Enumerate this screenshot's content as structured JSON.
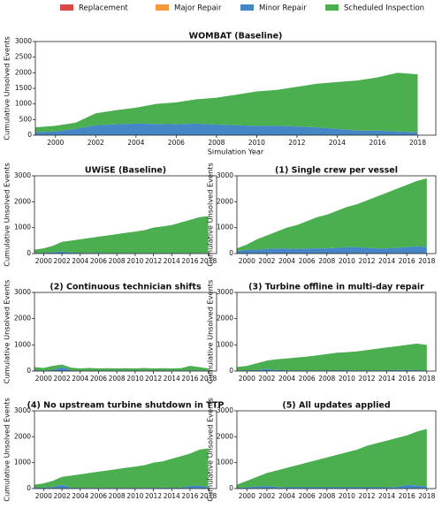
{
  "chart_data": [
    {
      "type": "stacked_area",
      "title": "WOMBAT (Baseline)",
      "xlabel": "Simulation Year",
      "ylabel": "Cumulative Unsolved Events",
      "x": [
        1999,
        2000,
        2001,
        2002,
        2003,
        2004,
        2005,
        2006,
        2007,
        2008,
        2009,
        2010,
        2011,
        2012,
        2013,
        2014,
        2015,
        2016,
        2017,
        2018
      ],
      "xlim": [
        1999,
        2018.9
      ],
      "xticks": [
        2000,
        2002,
        2004,
        2006,
        2008,
        2010,
        2012,
        2014,
        2016,
        2018
      ],
      "ylim": [
        0,
        3000
      ],
      "yticks": [
        0,
        500,
        1000,
        1500,
        2000,
        2500,
        3000
      ],
      "legend": "top",
      "series": [
        {
          "name": "Replacement",
          "color": "#d94747",
          "values": [
            0,
            0,
            0,
            0,
            0,
            0,
            0,
            0,
            0,
            0,
            0,
            0,
            0,
            0,
            0,
            0,
            0,
            0,
            0,
            0
          ]
        },
        {
          "name": "Major Repair",
          "color": "#f59a3a",
          "values": [
            0,
            0,
            0,
            0,
            0,
            0,
            0,
            0,
            0,
            0,
            0,
            0,
            0,
            0,
            0,
            0,
            0,
            0,
            0,
            0
          ]
        },
        {
          "name": "Minor Repair",
          "color": "#4587c6",
          "values": [
            100,
            120,
            200,
            320,
            350,
            370,
            360,
            350,
            370,
            340,
            320,
            300,
            300,
            280,
            250,
            200,
            150,
            150,
            120,
            100
          ]
        },
        {
          "name": "Scheduled Inspection",
          "color": "#4caf4f",
          "values": [
            150,
            180,
            200,
            380,
            450,
            510,
            640,
            700,
            780,
            860,
            980,
            1100,
            1150,
            1270,
            1400,
            1500,
            1600,
            1700,
            1880,
            1850
          ]
        }
      ]
    },
    {
      "type": "stacked_area",
      "title": "UWiSE (Baseline)",
      "ylabel": "Cumulative Unsolved Events",
      "x": [
        1999,
        2000,
        2001,
        2002,
        2003,
        2004,
        2005,
        2006,
        2007,
        2008,
        2009,
        2010,
        2011,
        2012,
        2013,
        2014,
        2015,
        2016,
        2017,
        2018
      ],
      "xlim": [
        1999,
        2018.9
      ],
      "xticks": [
        2000,
        2002,
        2004,
        2006,
        2008,
        2010,
        2012,
        2014,
        2016,
        2018
      ],
      "ylim": [
        0,
        3000
      ],
      "yticks": [
        0,
        1000,
        2000,
        3000
      ],
      "series": [
        {
          "name": "Replacement",
          "color": "#d94747",
          "values": [
            0,
            0,
            0,
            0,
            0,
            0,
            0,
            0,
            0,
            0,
            0,
            0,
            0,
            0,
            0,
            0,
            0,
            0,
            0,
            0
          ]
        },
        {
          "name": "Major Repair",
          "color": "#f59a3a",
          "values": [
            0,
            0,
            0,
            0,
            0,
            0,
            0,
            0,
            0,
            0,
            0,
            0,
            0,
            0,
            0,
            0,
            0,
            0,
            0,
            0
          ]
        },
        {
          "name": "Minor Repair",
          "color": "#4587c6",
          "values": [
            20,
            30,
            50,
            80,
            40,
            30,
            30,
            30,
            20,
            20,
            20,
            20,
            20,
            20,
            20,
            20,
            20,
            20,
            20,
            20
          ]
        },
        {
          "name": "Scheduled Inspection",
          "color": "#4caf4f",
          "values": [
            130,
            170,
            250,
            370,
            460,
            520,
            570,
            620,
            680,
            730,
            780,
            830,
            880,
            980,
            1030,
            1080,
            1180,
            1280,
            1380,
            1430
          ]
        }
      ]
    },
    {
      "type": "stacked_area",
      "title": "(1) Single crew per vessel",
      "ylabel": "Cumulative Unsolved Events",
      "x": [
        1999,
        2000,
        2001,
        2002,
        2003,
        2004,
        2005,
        2006,
        2007,
        2008,
        2009,
        2010,
        2011,
        2012,
        2013,
        2014,
        2015,
        2016,
        2017,
        2018
      ],
      "xlim": [
        1999,
        2018.9
      ],
      "xticks": [
        2000,
        2002,
        2004,
        2006,
        2008,
        2010,
        2012,
        2014,
        2016,
        2018
      ],
      "ylim": [
        0,
        3000
      ],
      "yticks": [
        0,
        1000,
        2000,
        3000
      ],
      "series": [
        {
          "name": "Replacement",
          "color": "#d94747",
          "values": [
            0,
            0,
            0,
            0,
            0,
            0,
            0,
            0,
            0,
            0,
            0,
            0,
            0,
            0,
            0,
            0,
            0,
            0,
            0,
            0
          ]
        },
        {
          "name": "Major Repair",
          "color": "#f59a3a",
          "values": [
            0,
            0,
            0,
            0,
            0,
            0,
            0,
            0,
            0,
            0,
            0,
            0,
            0,
            0,
            0,
            0,
            0,
            0,
            0,
            0
          ]
        },
        {
          "name": "Minor Repair",
          "color": "#4587c6",
          "values": [
            100,
            150,
            150,
            180,
            200,
            200,
            180,
            200,
            200,
            200,
            220,
            250,
            250,
            220,
            200,
            200,
            220,
            250,
            280,
            260
          ]
        },
        {
          "name": "Scheduled Inspection",
          "color": "#4caf4f",
          "values": [
            100,
            200,
            400,
            520,
            650,
            800,
            920,
            1050,
            1200,
            1300,
            1430,
            1550,
            1650,
            1830,
            2000,
            2150,
            2280,
            2400,
            2520,
            2640
          ]
        }
      ]
    },
    {
      "type": "stacked_area",
      "title": "(2) Continuous technician shifts",
      "ylabel": "Cumulative Unsolved Events",
      "x": [
        1999,
        2000,
        2001,
        2002,
        2003,
        2004,
        2005,
        2006,
        2007,
        2008,
        2009,
        2010,
        2011,
        2012,
        2013,
        2014,
        2015,
        2016,
        2017,
        2018
      ],
      "xlim": [
        1999,
        2018.9
      ],
      "xticks": [
        2000,
        2002,
        2004,
        2006,
        2008,
        2010,
        2012,
        2014,
        2016,
        2018
      ],
      "ylim": [
        0,
        3000
      ],
      "yticks": [
        0,
        1000,
        2000,
        3000
      ],
      "series": [
        {
          "name": "Replacement",
          "color": "#d94747",
          "values": [
            0,
            0,
            0,
            0,
            0,
            0,
            0,
            0,
            0,
            0,
            0,
            0,
            0,
            0,
            0,
            0,
            0,
            0,
            0,
            0
          ]
        },
        {
          "name": "Major Repair",
          "color": "#f59a3a",
          "values": [
            0,
            0,
            0,
            0,
            0,
            0,
            0,
            0,
            0,
            0,
            0,
            0,
            0,
            0,
            0,
            0,
            0,
            0,
            0,
            0
          ]
        },
        {
          "name": "Minor Repair",
          "color": "#4587c6",
          "values": [
            30,
            20,
            40,
            150,
            30,
            20,
            20,
            20,
            20,
            20,
            20,
            20,
            20,
            20,
            20,
            20,
            20,
            30,
            20,
            20
          ]
        },
        {
          "name": "Scheduled Inspection",
          "color": "#4caf4f",
          "values": [
            120,
            100,
            160,
            100,
            100,
            80,
            100,
            80,
            90,
            80,
            90,
            80,
            100,
            80,
            90,
            80,
            90,
            170,
            130,
            80
          ]
        }
      ]
    },
    {
      "type": "stacked_area",
      "title": "(3) Turbine offline in multi-day repair",
      "ylabel": "Cumulative Unsolved Events",
      "x": [
        1999,
        2000,
        2001,
        2002,
        2003,
        2004,
        2005,
        2006,
        2007,
        2008,
        2009,
        2010,
        2011,
        2012,
        2013,
        2014,
        2015,
        2016,
        2017,
        2018
      ],
      "xlim": [
        1999,
        2018.9
      ],
      "xticks": [
        2000,
        2002,
        2004,
        2006,
        2008,
        2010,
        2012,
        2014,
        2016,
        2018
      ],
      "ylim": [
        0,
        3000
      ],
      "yticks": [
        0,
        1000,
        2000,
        3000
      ],
      "series": [
        {
          "name": "Replacement",
          "color": "#d94747",
          "values": [
            0,
            0,
            0,
            0,
            0,
            0,
            0,
            0,
            0,
            0,
            0,
            0,
            0,
            0,
            0,
            0,
            0,
            0,
            0,
            0
          ]
        },
        {
          "name": "Major Repair",
          "color": "#f59a3a",
          "values": [
            0,
            0,
            0,
            0,
            0,
            0,
            0,
            0,
            0,
            0,
            0,
            0,
            0,
            0,
            0,
            0,
            0,
            0,
            0,
            0
          ]
        },
        {
          "name": "Minor Repair",
          "color": "#4587c6",
          "values": [
            20,
            30,
            40,
            80,
            40,
            30,
            30,
            30,
            30,
            30,
            40,
            30,
            30,
            30,
            30,
            30,
            40,
            50,
            30,
            30
          ]
        },
        {
          "name": "Scheduled Inspection",
          "color": "#4caf4f",
          "values": [
            130,
            170,
            260,
            320,
            410,
            450,
            490,
            520,
            570,
            620,
            660,
            690,
            720,
            770,
            820,
            870,
            910,
            950,
            1020,
            970
          ]
        }
      ]
    },
    {
      "type": "stacked_area",
      "title": "(4) No upstream turbine shutdown in TTP",
      "ylabel": "Cumulative Unsolved Events",
      "x": [
        1999,
        2000,
        2001,
        2002,
        2003,
        2004,
        2005,
        2006,
        2007,
        2008,
        2009,
        2010,
        2011,
        2012,
        2013,
        2014,
        2015,
        2016,
        2017,
        2018
      ],
      "xlim": [
        1999,
        2018.9
      ],
      "xticks": [
        2000,
        2002,
        2004,
        2006,
        2008,
        2010,
        2012,
        2014,
        2016,
        2018
      ],
      "ylim": [
        0,
        3000
      ],
      "yticks": [
        0,
        1000,
        2000,
        3000
      ],
      "series": [
        {
          "name": "Replacement",
          "color": "#d94747",
          "values": [
            0,
            0,
            0,
            0,
            0,
            0,
            0,
            0,
            0,
            0,
            0,
            0,
            0,
            0,
            0,
            0,
            0,
            0,
            0,
            0
          ]
        },
        {
          "name": "Major Repair",
          "color": "#f59a3a",
          "values": [
            0,
            0,
            0,
            0,
            0,
            0,
            0,
            0,
            0,
            0,
            0,
            0,
            0,
            0,
            0,
            0,
            0,
            0,
            0,
            0
          ]
        },
        {
          "name": "Minor Repair",
          "color": "#4587c6",
          "values": [
            30,
            40,
            60,
            150,
            40,
            30,
            30,
            30,
            30,
            30,
            30,
            30,
            30,
            30,
            40,
            30,
            40,
            100,
            120,
            50
          ]
        },
        {
          "name": "Scheduled Inspection",
          "color": "#4caf4f",
          "values": [
            120,
            160,
            240,
            300,
            460,
            520,
            570,
            620,
            670,
            720,
            770,
            820,
            870,
            970,
            1010,
            1120,
            1210,
            1250,
            1380,
            1500
          ]
        }
      ]
    },
    {
      "type": "stacked_area",
      "title": "(5) All updates applied",
      "ylabel": "Cumulative Unsolved Events",
      "x": [
        1999,
        2000,
        2001,
        2002,
        2003,
        2004,
        2005,
        2006,
        2007,
        2008,
        2009,
        2010,
        2011,
        2012,
        2013,
        2014,
        2015,
        2016,
        2017,
        2018
      ],
      "xlim": [
        1999,
        2018.9
      ],
      "xticks": [
        2000,
        2002,
        2004,
        2006,
        2008,
        2010,
        2012,
        2014,
        2016,
        2018
      ],
      "ylim": [
        0,
        3000
      ],
      "yticks": [
        0,
        1000,
        2000,
        3000
      ],
      "series": [
        {
          "name": "Replacement",
          "color": "#d94747",
          "values": [
            0,
            0,
            0,
            0,
            0,
            0,
            0,
            0,
            0,
            0,
            0,
            0,
            0,
            0,
            0,
            0,
            0,
            0,
            0,
            0
          ]
        },
        {
          "name": "Major Repair",
          "color": "#f59a3a",
          "values": [
            0,
            0,
            0,
            0,
            0,
            0,
            0,
            0,
            0,
            0,
            0,
            0,
            0,
            0,
            0,
            0,
            0,
            0,
            0,
            0
          ]
        },
        {
          "name": "Minor Repair",
          "color": "#4587c6",
          "values": [
            30,
            50,
            80,
            100,
            60,
            50,
            50,
            50,
            50,
            50,
            50,
            50,
            50,
            50,
            50,
            50,
            60,
            150,
            120,
            80
          ]
        },
        {
          "name": "Scheduled Inspection",
          "color": "#4caf4f",
          "values": [
            120,
            250,
            370,
            500,
            640,
            750,
            850,
            950,
            1050,
            1150,
            1250,
            1350,
            1450,
            1600,
            1700,
            1800,
            1890,
            1900,
            2080,
            2220
          ]
        }
      ]
    }
  ]
}
